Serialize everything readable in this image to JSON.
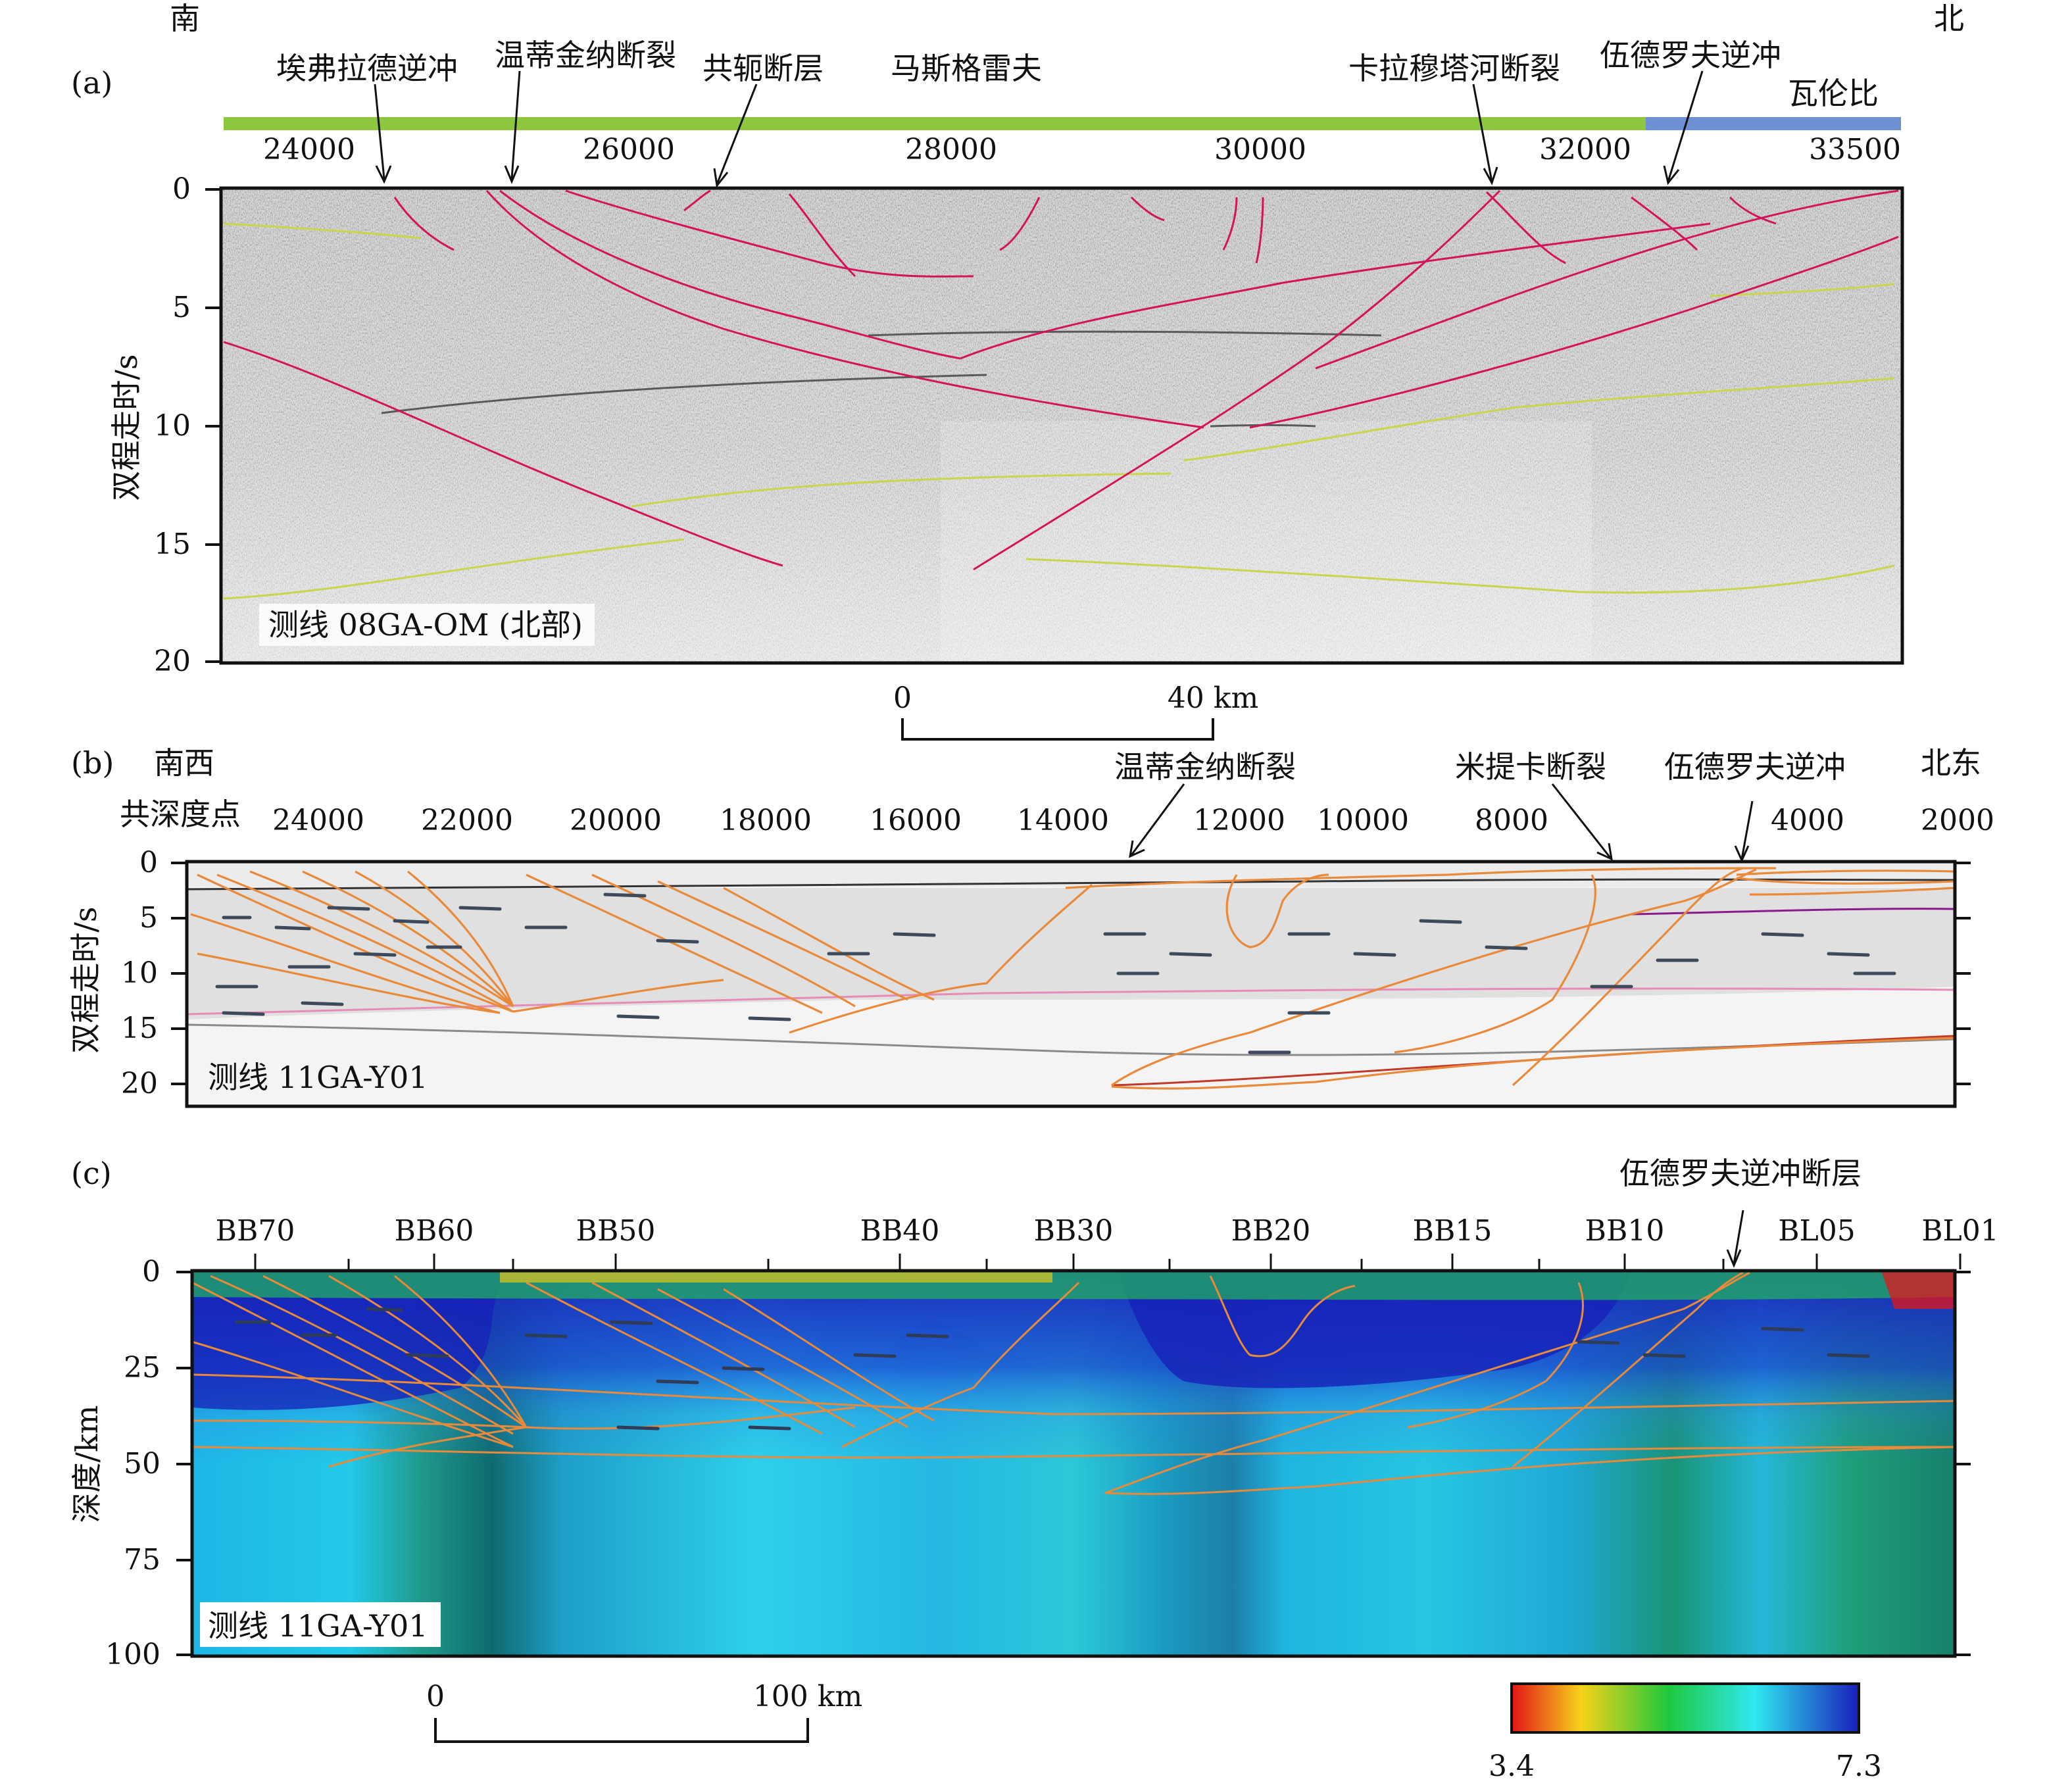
{
  "panel_a": {
    "panel_label": "(a)",
    "dir_left": "南",
    "dir_right": "北",
    "annotations": [
      "埃弗拉德逆冲",
      "温蒂金纳断裂",
      "共轭断层",
      "马斯格雷夫",
      "卡拉穆塔河断裂",
      "伍德罗夫逆冲",
      "瓦伦比"
    ],
    "x_ticks": [
      "24000",
      "26000",
      "28000",
      "30000",
      "32000",
      "33500"
    ],
    "y_ticks": [
      "0",
      "5",
      "10",
      "15",
      "20"
    ],
    "y_label": "双程走时/s",
    "line_label": "测线 08GA-OM (北部)",
    "bar_colors": {
      "musgrave": "#8dc63f",
      "warburton": "#6d8fd4"
    }
  },
  "scale_a": {
    "start": "0",
    "end": "40 km"
  },
  "panel_b": {
    "panel_label": "(b)",
    "dir_left": "南西",
    "dir_right": "北东",
    "cdp_label": "共深度点",
    "annotations": [
      "温蒂金纳断裂",
      "米提卡断裂",
      "伍德罗夫逆冲"
    ],
    "x_ticks": [
      "24000",
      "22000",
      "20000",
      "18000",
      "16000",
      "14000",
      "12000",
      "10000",
      "8000",
      "4000",
      "2000"
    ],
    "y_ticks": [
      "0",
      "5",
      "10",
      "15",
      "20"
    ],
    "y_label": "双程走时/s",
    "line_label": "测线 11GA-Y01"
  },
  "panel_c": {
    "panel_label": "(c)",
    "annotation": "伍德罗夫逆冲断层",
    "stations": [
      "BB70",
      "BB60",
      "BB50",
      "BB40",
      "BB30",
      "BB20",
      "BB15",
      "BB10",
      "BL05",
      "BL01"
    ],
    "y_ticks": [
      "0",
      "25",
      "50",
      "75",
      "100"
    ],
    "y_label": "深度/km",
    "line_label": "测线 11GA-Y01"
  },
  "scale_c": {
    "start": "0",
    "end": "100 km"
  },
  "colorbar": {
    "min": "3.4",
    "max": "7.3",
    "colors": [
      "#e4151a",
      "#f6d21b",
      "#20c83c",
      "#2ee8f0",
      "#1a1ebd"
    ]
  }
}
